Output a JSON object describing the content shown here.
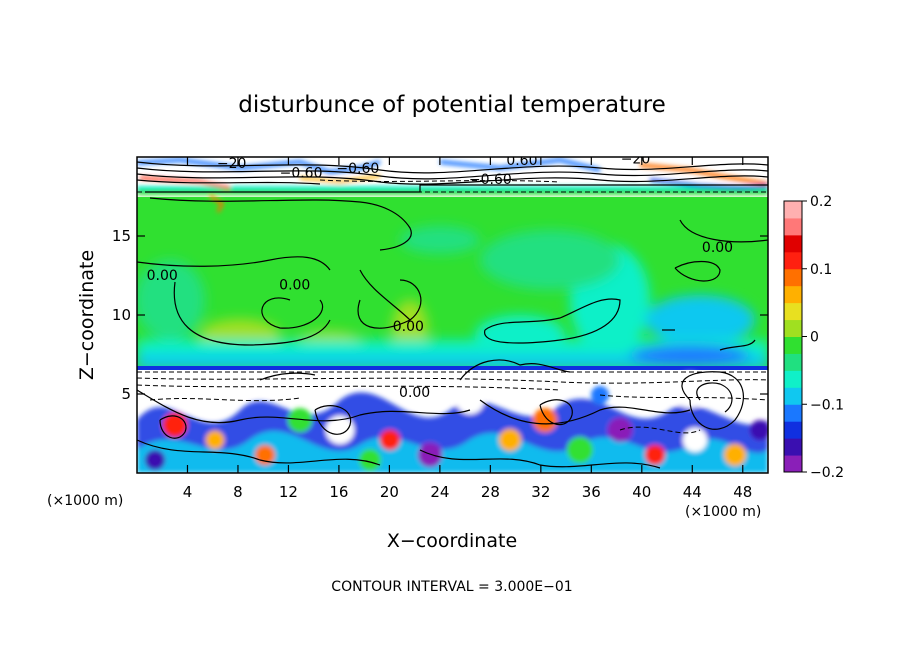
{
  "chart_data": {
    "type": "heatmap",
    "title": "disturbunce of potential temperature",
    "xlabel": "X−coordinate",
    "ylabel": "Z−coordinate",
    "x_unit": "(×1000 m)",
    "z_unit": "(×1000 m)",
    "xlim": [
      0,
      50
    ],
    "ylim": [
      0,
      20
    ],
    "x_ticks": [
      4,
      8,
      12,
      16,
      20,
      24,
      28,
      32,
      36,
      40,
      44,
      48
    ],
    "y_ticks": [
      5,
      10,
      15
    ],
    "colorbar": {
      "min": -0.2,
      "max": 0.2,
      "ticks": [
        0.2,
        0.1,
        0,
        -0.1,
        -0.2
      ],
      "tick_labels": [
        "0.2",
        "0.1",
        "0",
        "−0.1",
        "−0.2"
      ],
      "colors": [
        "#8a1fb8",
        "#3a0fb0",
        "#1030e0",
        "#1a78ff",
        "#10c8f0",
        "#10f0c8",
        "#20e080",
        "#30e030",
        "#a0e020",
        "#e8e020",
        "#ffb000",
        "#ff7000",
        "#ff2010",
        "#e00000",
        "#ff7878",
        "#ffb0b0"
      ]
    },
    "contour_labels": [
      {
        "text": "−20",
        "x": 7.5,
        "z": 19.3
      },
      {
        "text": "−0.60",
        "x": 13.0,
        "z": 18.7
      },
      {
        "text": "−0.60",
        "x": 17.5,
        "z": 19.0
      },
      {
        "text": "0.60",
        "x": 30.5,
        "z": 19.5
      },
      {
        "text": "−0.60",
        "x": 28.0,
        "z": 18.3
      },
      {
        "text": "−20",
        "x": 39.5,
        "z": 19.6
      },
      {
        "text": "0.00",
        "x": 2.0,
        "z": 12.2
      },
      {
        "text": "0.00",
        "x": 12.5,
        "z": 11.6
      },
      {
        "text": "0.00",
        "x": 46.0,
        "z": 14.0
      },
      {
        "text": "0.00",
        "x": 22.0,
        "z": 4.8
      },
      {
        "text": "0.00",
        "x": 21.5,
        "z": 9.0
      }
    ],
    "contour_interval_label": "CONTOUR INTERVAL = 3.000E−01"
  }
}
